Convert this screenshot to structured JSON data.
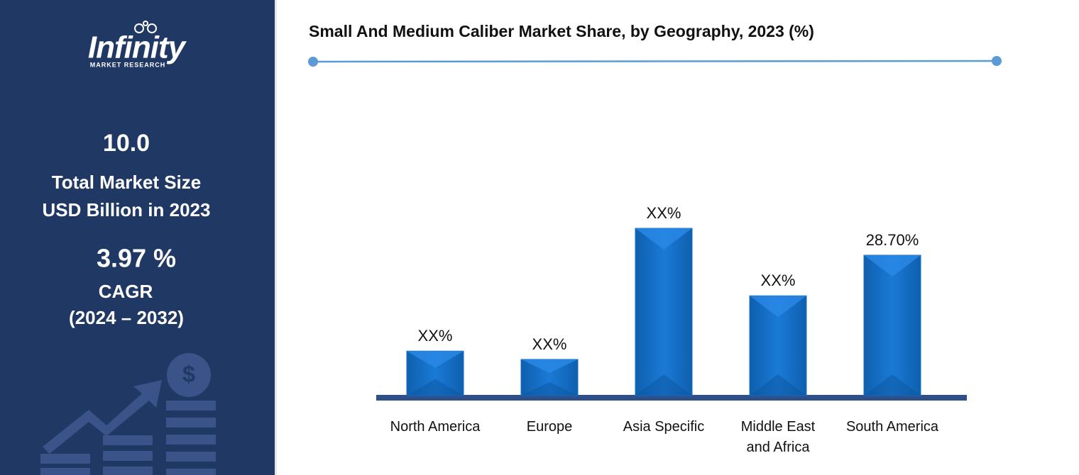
{
  "sidebar": {
    "logo_name": "Infinity",
    "logo_tagline": "MARKET RESEARCH",
    "market_size": "10.0",
    "market_size_label_1": "Total Market Size",
    "market_size_label_2": "USD Billion in 2023",
    "cagr": "3.97 %",
    "cagr_label": "CAGR",
    "cagr_period": "(2024 – 2032)"
  },
  "chart_data": {
    "type": "bar",
    "title": "Small And Medium Caliber Market Share, by Geography, 2023 (%)",
    "categories": [
      "North America",
      "Europe",
      "Asia Specific",
      "Middle East and Africa",
      "South America"
    ],
    "values": [
      9.1,
      7.4,
      34.2,
      20.4,
      28.7
    ],
    "value_labels": [
      "XX%",
      "XX%",
      "XX%",
      "XX%",
      "28.70%"
    ],
    "color": "#1470c8"
  }
}
